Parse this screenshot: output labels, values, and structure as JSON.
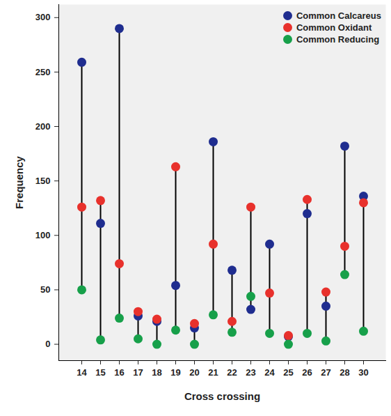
{
  "chart_data": {
    "type": "dot",
    "x_label": "Cross crossing",
    "y_label": "Frequency",
    "categories": [
      14,
      15,
      16,
      17,
      18,
      19,
      20,
      21,
      22,
      23,
      24,
      25,
      26,
      27,
      28,
      30
    ],
    "series": [
      {
        "name": "Common Calcareus",
        "color": "#1f2d8f",
        "values": [
          259,
          111,
          290,
          26,
          21,
          54,
          15,
          186,
          68,
          32,
          92,
          7,
          120,
          35,
          182,
          136
        ]
      },
      {
        "name": "Common Oxidant",
        "color": "#e8312c",
        "values": [
          126,
          132,
          74,
          30,
          23,
          163,
          19,
          92,
          21,
          126,
          47,
          8,
          133,
          48,
          90,
          130
        ]
      },
      {
        "name": "Common Reducing",
        "color": "#17a04a",
        "values": [
          50,
          4,
          24,
          5,
          0,
          13,
          0,
          27,
          11,
          44,
          10,
          0,
          10,
          3,
          64,
          12
        ]
      }
    ],
    "ylim": [
      -15,
      312
    ],
    "yticks": [
      0,
      50,
      100,
      150,
      200,
      250,
      300
    ],
    "grid": false,
    "legend": "top-right"
  }
}
